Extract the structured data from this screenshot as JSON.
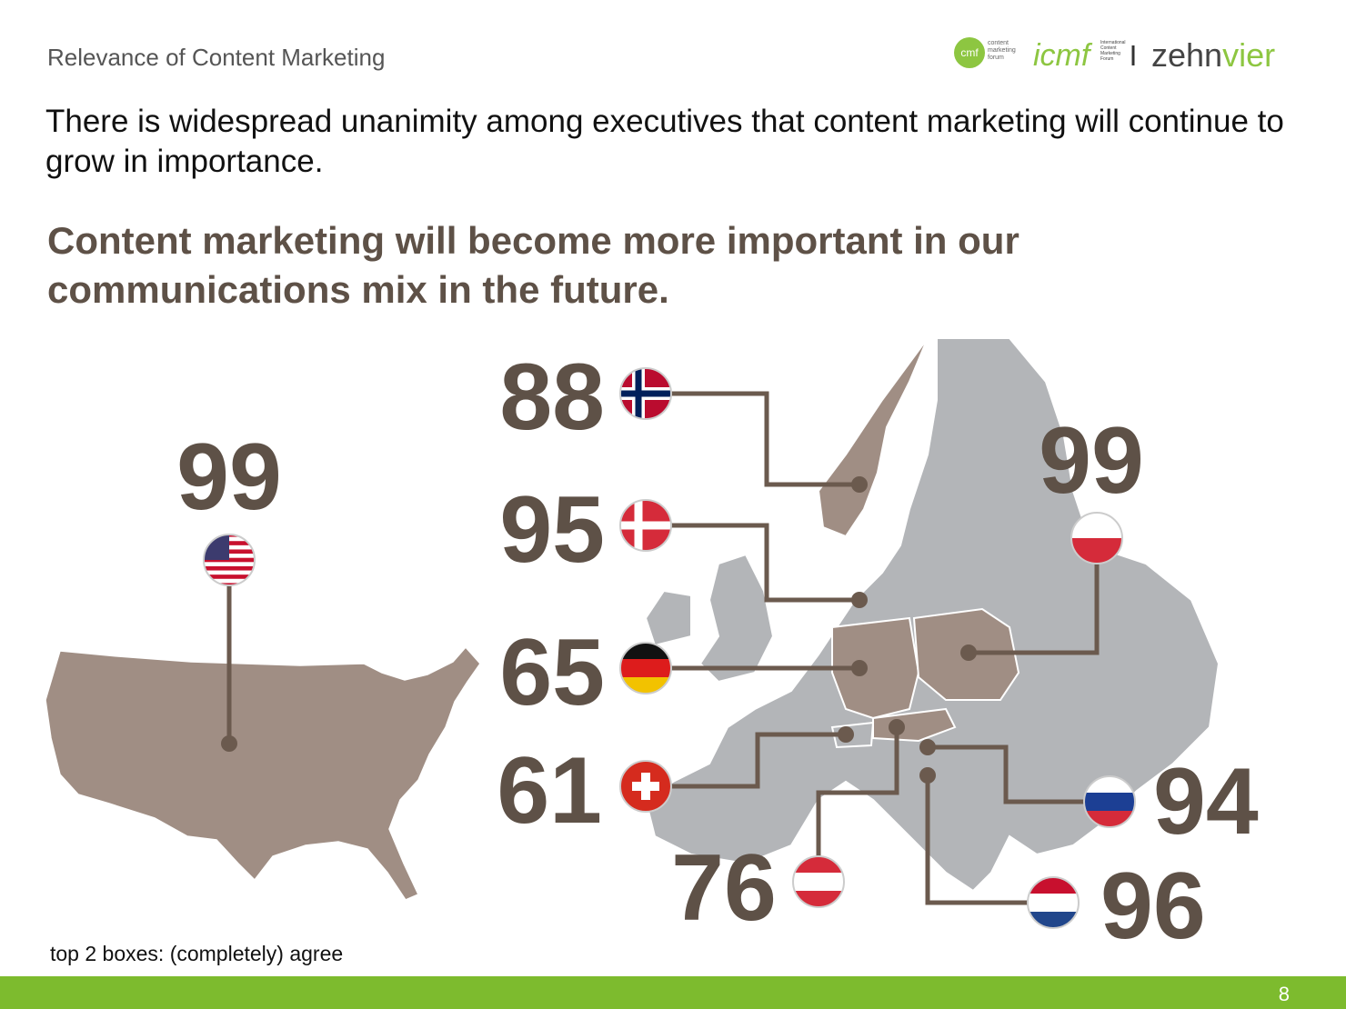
{
  "header": {
    "title": "Relevance of Content Marketing",
    "logos": {
      "cmf": "cmf",
      "cmf_text": "content marketing forum",
      "icmf": "icmf",
      "icmf_text": "International Content Marketing Forum",
      "zehn": "zehn",
      "vier": "vier"
    }
  },
  "intro": "There is widespread unanimity among executives that content marketing will continue to grow in importance.",
  "question": "Content marketing will become more important in our communications mix in the future.",
  "markers": [
    {
      "value": 99
    },
    {
      "value": 88
    },
    {
      "value": 95
    },
    {
      "value": 65
    },
    {
      "value": 61
    },
    {
      "value": 76
    },
    {
      "value": 99
    },
    {
      "value": 94
    },
    {
      "value": 96
    }
  ],
  "footnote": "top 2 boxes: (completely) agree",
  "page_number": 8
}
